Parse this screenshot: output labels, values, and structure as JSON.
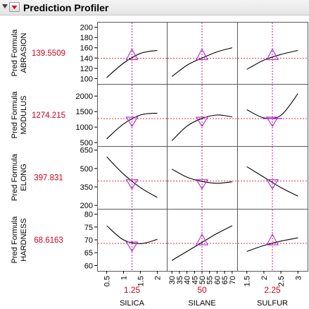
{
  "header": {
    "title": "Prediction Profiler",
    "collapse_icon": "triangle-down-icon",
    "menu_icon": "red-triangle-menu-icon"
  },
  "colors": {
    "value_red": "#d0021b",
    "ref_line": "#e8334a",
    "crosshair": "#c0208a",
    "marker": "#b52ad8",
    "curve": "#000000",
    "frame": "#5a5a5a"
  },
  "responses": [
    {
      "label_line1": "Pred Formula",
      "label_line2": "ABRASION",
      "value": "139.5509",
      "ticks": [
        "100",
        "120",
        "140",
        "160",
        "180",
        "200"
      ],
      "range": [
        95,
        205
      ]
    },
    {
      "label_line1": "Pred Formula",
      "label_line2": "MODULUS",
      "value": "1274.215",
      "ticks": [
        "500",
        "1000",
        "1500",
        "2000"
      ],
      "range": [
        480,
        2300
      ]
    },
    {
      "label_line1": "Pred Formula",
      "label_line2": "ELONG",
      "value": "397.831",
      "ticks": [
        "200",
        "350",
        "500",
        "650"
      ],
      "range": [
        195,
        660
      ]
    },
    {
      "label_line1": "Pred Formula",
      "label_line2": "HARDNESS",
      "value": "68.6163",
      "ticks": [
        "60",
        "65",
        "70",
        "75",
        "80"
      ],
      "range": [
        59,
        81
      ]
    }
  ],
  "factors": [
    {
      "name": "SILICA",
      "value": "1.25",
      "current": 1.25,
      "range": [
        0.3,
        2.2
      ],
      "ticks": [
        "0.5",
        "1",
        "1.5",
        "2"
      ]
    },
    {
      "name": "SILANE",
      "value": "50",
      "current": 50,
      "range": [
        28.5,
        71.5
      ],
      "ticks": [
        "30",
        "35",
        "40",
        "45",
        "50",
        "55",
        "60",
        "65",
        "70"
      ]
    },
    {
      "name": "SULFUR",
      "value": "2.25",
      "current": 2.25,
      "range": [
        1.3,
        3.2
      ],
      "ticks": [
        "1.5",
        "2",
        "2.5",
        "3"
      ]
    }
  ],
  "chart_data": {
    "type": "line",
    "title": "Prediction Profiler",
    "x_factors": [
      "SILICA",
      "SILANE",
      "SULFUR"
    ],
    "current_x": [
      1.25,
      50,
      2.25
    ],
    "responses": [
      "ABRASION",
      "MODULUS",
      "ELONG",
      "HARDNESS"
    ],
    "current_y": [
      139.5509,
      1274.215,
      397.831,
      68.6163
    ],
    "curves": [
      [
        {
          "x": [
            0.5,
            1,
            1.5,
            2
          ],
          "y": [
            102,
            130,
            149,
            155
          ]
        },
        {
          "x": [
            30,
            40,
            50,
            60,
            70
          ],
          "y": [
            104,
            126,
            140,
            152,
            160
          ]
        },
        {
          "x": [
            1.5,
            2,
            2.5,
            3
          ],
          "y": [
            118,
            136,
            147,
            155
          ]
        }
      ],
      [
        {
          "x": [
            0.5,
            1,
            1.5,
            2
          ],
          "y": [
            620,
            1100,
            1390,
            1450
          ]
        },
        {
          "x": [
            30,
            40,
            50,
            60,
            70
          ],
          "y": [
            560,
            1030,
            1280,
            1390,
            1330
          ]
        },
        {
          "x": [
            1.5,
            2,
            2.5,
            3
          ],
          "y": [
            1560,
            1300,
            1380,
            2080
          ]
        }
      ],
      [
        {
          "x": [
            0.5,
            1,
            1.5,
            2
          ],
          "y": [
            595,
            455,
            345,
            265
          ]
        },
        {
          "x": [
            30,
            40,
            50,
            60,
            70
          ],
          "y": [
            495,
            430,
            395,
            380,
            392
          ]
        },
        {
          "x": [
            1.5,
            2,
            2.5,
            3
          ],
          "y": [
            515,
            430,
            345,
            275
          ]
        }
      ],
      [
        {
          "x": [
            0.5,
            1,
            1.5,
            2
          ],
          "y": [
            75.5,
            70,
            68.5,
            70.2
          ]
        },
        {
          "x": [
            30,
            40,
            50,
            60,
            70
          ],
          "y": [
            62,
            65.5,
            69,
            72.5,
            75.5
          ]
        },
        {
          "x": [
            1.5,
            2,
            2.5,
            3
          ],
          "y": [
            65.5,
            67.8,
            69.5,
            70.8
          ]
        }
      ]
    ]
  }
}
